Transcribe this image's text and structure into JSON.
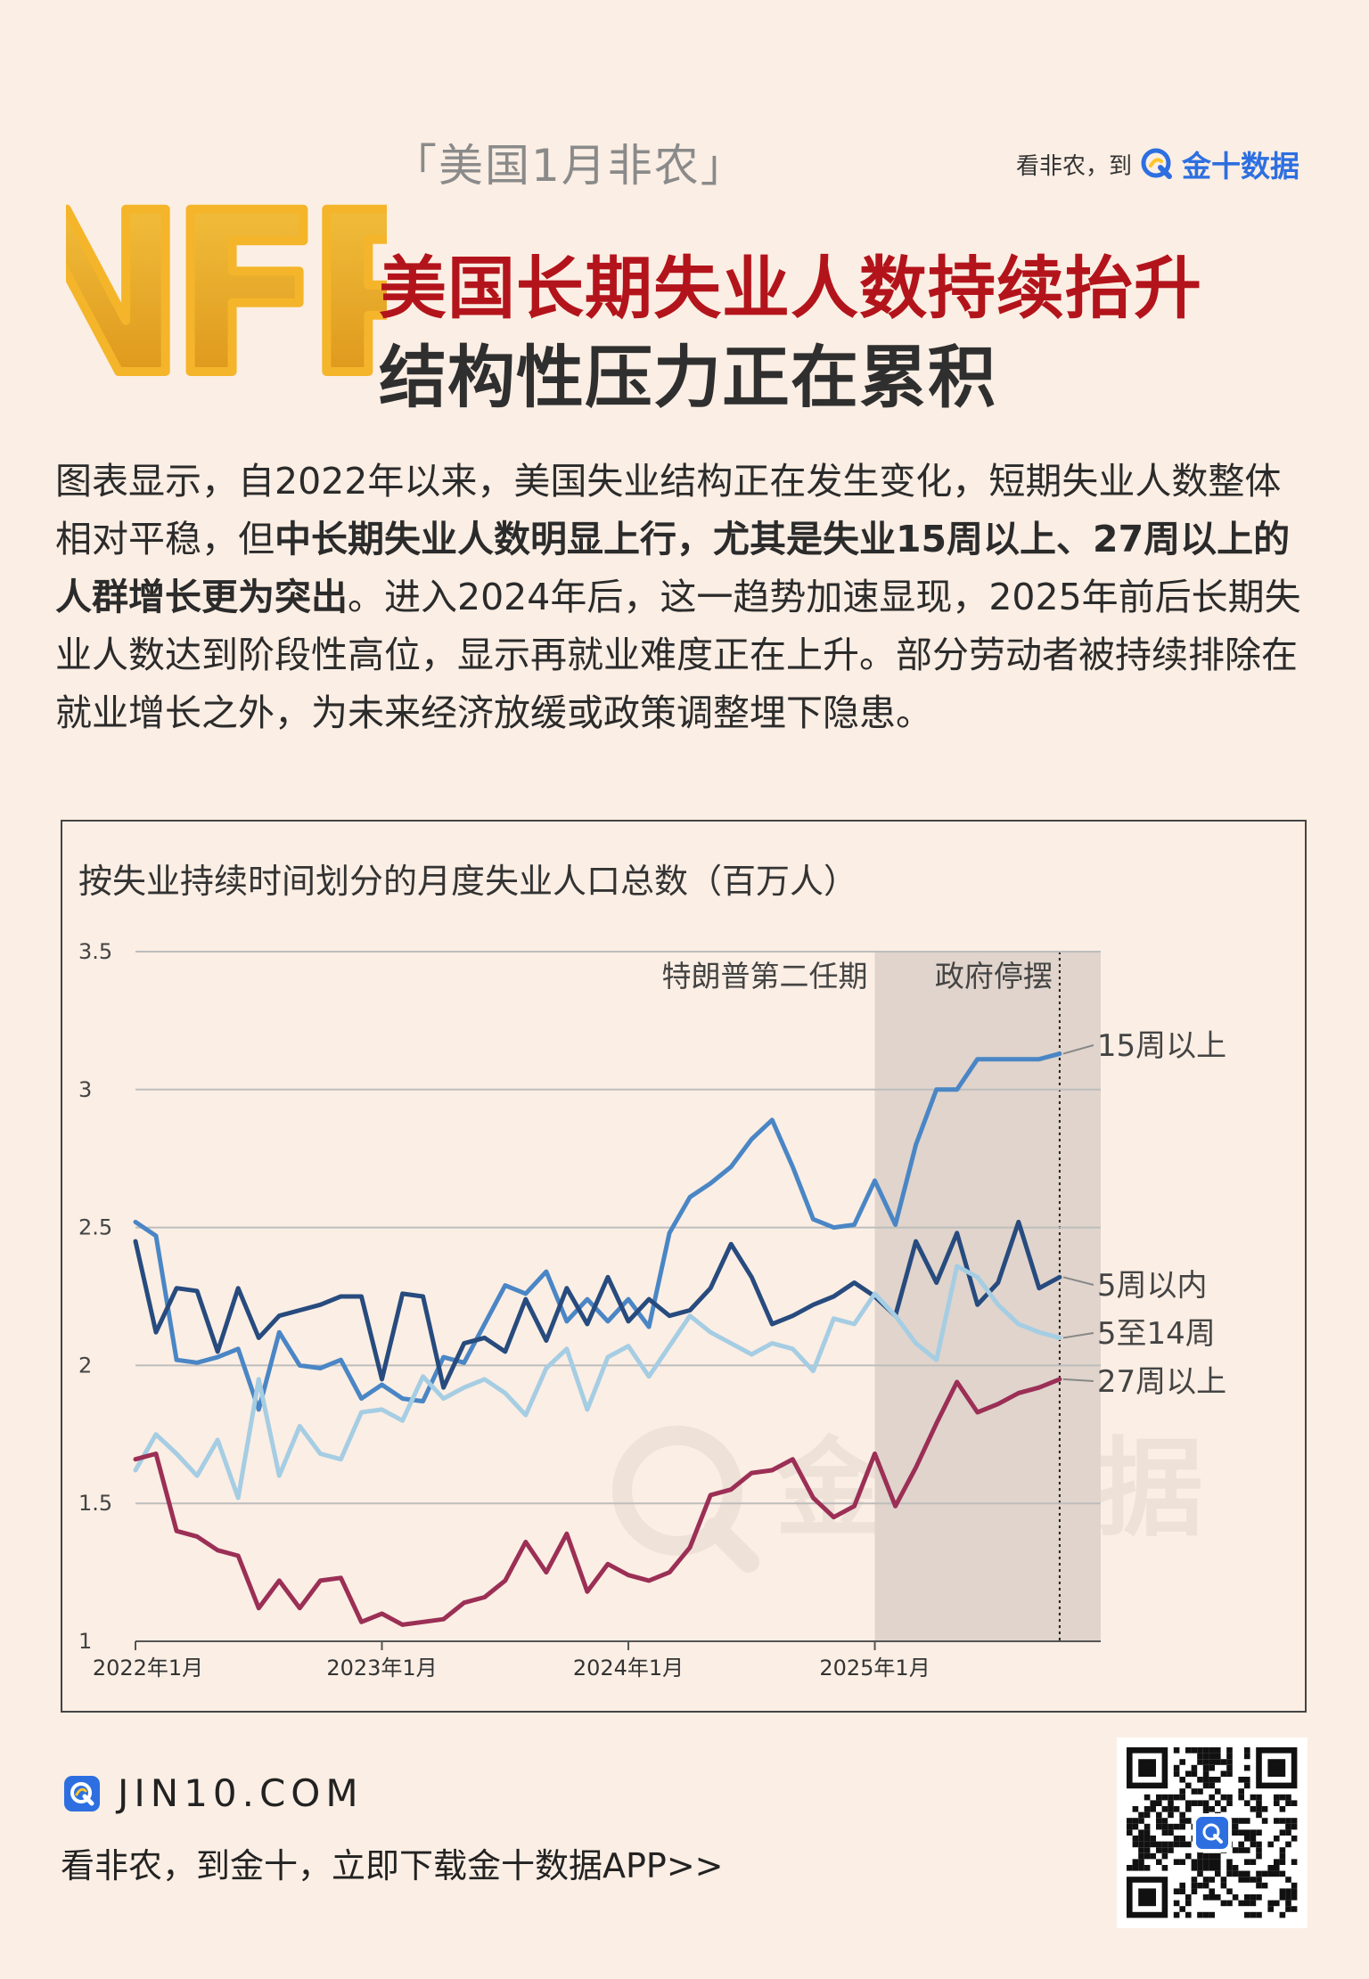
{
  "header": {
    "tag": "「美国1月非农」",
    "logo_text": "NFP",
    "headline_line1": "美国长期失业人数持续抬升",
    "headline_line2": "结构性压力正在累积",
    "brand_slogan": "看非农，到",
    "brand_name": "金十数据"
  },
  "body": {
    "p1": "图表显示，自2022年以来，美国失业结构正在发生变化，短期失业人数整体相对平稳，但",
    "bold": "中长期失业人数明显上行，尤其是失业15周以上、27周以上的人群增长更为突出",
    "p2": "。进入2024年后，这一趋势加速显现，2025年前后长期失业人数达到阶段性高位，显示再就业难度正在上升。部分劳动者被持续排除在就业增长之外，为未来经济放缓或政策调整埋下隐患。"
  },
  "colors": {
    "headline_red": "#b3141b",
    "brand_blue": "#2d6fe0",
    "series_15w": "#4a86c5",
    "series_5w": "#274b7e",
    "series_5_14w": "#a5cde3",
    "series_27w": "#9b2f55",
    "shade": "#e0d4cc"
  },
  "chart_data": {
    "type": "line",
    "title": "按失业持续时间划分的月度失业人口总数（百万人）",
    "ylim": [
      1,
      3.5
    ],
    "y_ticks": [
      "1",
      "1.5",
      "2",
      "2.5",
      "3",
      "3.5"
    ],
    "x_start": "2022-01",
    "x_ticks": [
      {
        "month": 0,
        "label": "2022年1月"
      },
      {
        "month": 12,
        "label": "2023年1月"
      },
      {
        "month": 24,
        "label": "2024年1月"
      },
      {
        "month": 36,
        "label": "2025年1月"
      }
    ],
    "shade": {
      "from_month": 36,
      "to_month": 47
    },
    "annotations": [
      {
        "text": "特朗普第二任期",
        "month": 36
      },
      {
        "text": "政府停摆",
        "month": 45
      }
    ],
    "grid": true,
    "series": [
      {
        "name": "15周以上",
        "color_key": "series_15w",
        "values": [
          2.52,
          2.47,
          2.02,
          2.01,
          2.03,
          2.06,
          1.84,
          2.12,
          2.0,
          1.99,
          2.02,
          1.88,
          1.93,
          1.88,
          1.87,
          2.03,
          2.01,
          2.15,
          2.29,
          2.26,
          2.34,
          2.16,
          2.24,
          2.16,
          2.24,
          2.14,
          2.48,
          2.61,
          2.66,
          2.72,
          2.82,
          2.89,
          2.72,
          2.53,
          2.5,
          2.51,
          2.67,
          2.51,
          2.8,
          3.0,
          3.0,
          3.11,
          3.11,
          3.11,
          3.11,
          3.13
        ]
      },
      {
        "name": "5周以内",
        "color_key": "series_5w",
        "values": [
          2.45,
          2.12,
          2.28,
          2.27,
          2.05,
          2.28,
          2.1,
          2.18,
          2.2,
          2.22,
          2.25,
          2.25,
          1.95,
          2.26,
          2.25,
          1.92,
          2.08,
          2.1,
          2.05,
          2.24,
          2.09,
          2.28,
          2.15,
          2.32,
          2.16,
          2.24,
          2.18,
          2.2,
          2.28,
          2.44,
          2.32,
          2.15,
          2.18,
          2.22,
          2.25,
          2.3,
          2.25,
          2.18,
          2.45,
          2.3,
          2.48,
          2.22,
          2.3,
          2.52,
          2.28,
          2.32
        ]
      },
      {
        "name": "5至14周",
        "color_key": "series_5_14w",
        "values": [
          1.62,
          1.75,
          1.68,
          1.6,
          1.73,
          1.52,
          1.95,
          1.6,
          1.78,
          1.68,
          1.66,
          1.83,
          1.84,
          1.8,
          1.96,
          1.88,
          1.92,
          1.95,
          1.9,
          1.82,
          1.99,
          2.06,
          1.84,
          2.03,
          2.07,
          1.96,
          2.07,
          2.18,
          2.12,
          2.08,
          2.04,
          2.08,
          2.06,
          1.98,
          2.17,
          2.15,
          2.26,
          2.18,
          2.08,
          2.02,
          2.36,
          2.32,
          2.22,
          2.15,
          2.12,
          2.1
        ]
      },
      {
        "name": "27周以上",
        "color_key": "series_27w",
        "values": [
          1.66,
          1.68,
          1.4,
          1.38,
          1.33,
          1.31,
          1.12,
          1.22,
          1.12,
          1.22,
          1.23,
          1.07,
          1.1,
          1.06,
          1.07,
          1.08,
          1.14,
          1.16,
          1.22,
          1.36,
          1.25,
          1.39,
          1.18,
          1.28,
          1.24,
          1.22,
          1.25,
          1.34,
          1.53,
          1.55,
          1.61,
          1.62,
          1.66,
          1.52,
          1.45,
          1.49,
          1.68,
          1.49,
          1.63,
          1.79,
          1.94,
          1.83,
          1.86,
          1.9,
          1.92,
          1.95
        ]
      }
    ]
  },
  "footer": {
    "url": "JIN10.COM",
    "slogan": "看非农，到金十，立即下载金十数据APP>>"
  },
  "watermark": "金十数据"
}
